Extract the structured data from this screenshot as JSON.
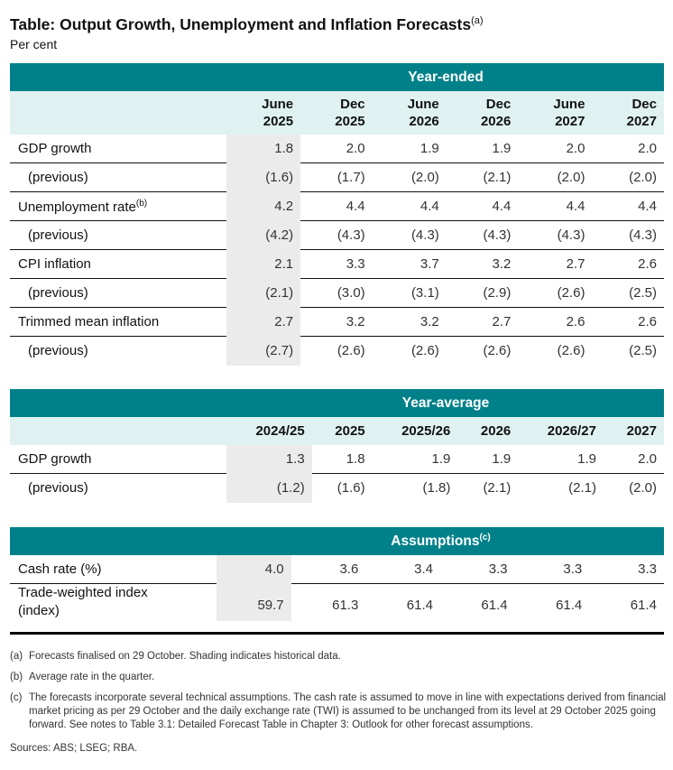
{
  "title": "Table: Output Growth, Unemployment and Inflation Forecasts",
  "title_note": "(a)",
  "unit": "Per cent",
  "colors": {
    "header": "#00818a",
    "subheader": "#dff2f1",
    "historical_shading": "#ebebeb"
  },
  "year_ended": {
    "band": "Year-ended",
    "columns": [
      [
        "June",
        "2025"
      ],
      [
        "Dec",
        "2025"
      ],
      [
        "June",
        "2026"
      ],
      [
        "Dec",
        "2026"
      ],
      [
        "June",
        "2027"
      ],
      [
        "Dec",
        "2027"
      ]
    ],
    "rows": [
      {
        "label": "GDP growth",
        "note": "",
        "values": [
          "1.8",
          "2.0",
          "1.9",
          "1.9",
          "2.0",
          "2.0"
        ]
      },
      {
        "label": "(previous)",
        "note": "",
        "values": [
          "(1.6)",
          "(1.7)",
          "(2.0)",
          "(2.1)",
          "(2.0)",
          "(2.0)"
        ]
      },
      {
        "label": "Unemployment rate",
        "note": "(b)",
        "values": [
          "4.2",
          "4.4",
          "4.4",
          "4.4",
          "4.4",
          "4.4"
        ]
      },
      {
        "label": "(previous)",
        "note": "",
        "values": [
          "(4.2)",
          "(4.3)",
          "(4.3)",
          "(4.3)",
          "(4.3)",
          "(4.3)"
        ]
      },
      {
        "label": "CPI inflation",
        "note": "",
        "values": [
          "2.1",
          "3.3",
          "3.7",
          "3.2",
          "2.7",
          "2.6"
        ]
      },
      {
        "label": "(previous)",
        "note": "",
        "values": [
          "(2.1)",
          "(3.0)",
          "(3.1)",
          "(2.9)",
          "(2.6)",
          "(2.5)"
        ]
      },
      {
        "label": "Trimmed mean inflation",
        "note": "",
        "values": [
          "2.7",
          "3.2",
          "3.2",
          "2.7",
          "2.6",
          "2.6"
        ]
      },
      {
        "label": "(previous)",
        "note": "",
        "values": [
          "(2.7)",
          "(2.6)",
          "(2.6)",
          "(2.6)",
          "(2.6)",
          "(2.5)"
        ]
      }
    ]
  },
  "year_average": {
    "band": "Year-average",
    "columns": [
      "2024/25",
      "2025",
      "2025/26",
      "2026",
      "2026/27",
      "2027"
    ],
    "rows": [
      {
        "label": "GDP growth",
        "values": [
          "1.3",
          "1.8",
          "1.9",
          "1.9",
          "1.9",
          "2.0"
        ]
      },
      {
        "label": "(previous)",
        "values": [
          "(1.2)",
          "(1.6)",
          "(1.8)",
          "(2.1)",
          "(2.1)",
          "(2.0)"
        ]
      }
    ]
  },
  "assumptions": {
    "band": "Assumptions",
    "band_note": "(c)",
    "rows": [
      {
        "label": "Cash rate (%)",
        "label2": "",
        "values": [
          "4.0",
          "3.6",
          "3.4",
          "3.3",
          "3.3",
          "3.3"
        ]
      },
      {
        "label": "Trade-weighted index",
        "label2": "(index)",
        "values": [
          "59.7",
          "61.3",
          "61.4",
          "61.4",
          "61.4",
          "61.4"
        ]
      }
    ]
  },
  "notes": [
    {
      "key": "(a)",
      "text": "Forecasts finalised on 29 October. Shading indicates historical data."
    },
    {
      "key": "(b)",
      "text": "Average rate in the quarter."
    },
    {
      "key": "(c)",
      "text": "The forecasts incorporate several technical assumptions. The cash rate is assumed to move in line with expectations derived from financial market pricing as per 29 October and the daily exchange rate (TWI) is assumed to be unchanged from its level at 29 October 2025 going forward. See notes to Table 3.1: Detailed Forecast Table in Chapter 3: Outlook for other forecast assumptions."
    }
  ],
  "sources": "Sources: ABS; LSEG; RBA."
}
